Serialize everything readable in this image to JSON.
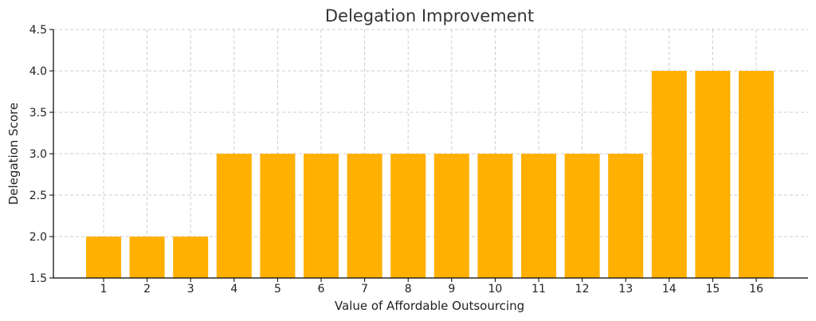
{
  "chart_data": {
    "type": "bar",
    "title": "Delegation Improvement",
    "xlabel": "Value of Affordable Outsourcing",
    "ylabel": "Delegation Score",
    "categories": [
      "1",
      "2",
      "3",
      "4",
      "5",
      "6",
      "7",
      "8",
      "9",
      "10",
      "11",
      "12",
      "13",
      "14",
      "15",
      "16"
    ],
    "values": [
      2,
      2,
      2,
      3,
      3,
      3,
      3,
      3,
      3,
      3,
      3,
      3,
      3,
      4,
      4,
      4
    ],
    "ylim": [
      1.5,
      4.5
    ],
    "yticks": [
      "1.5",
      "2.0",
      "2.5",
      "3.0",
      "3.5",
      "4.0",
      "4.5"
    ],
    "grid": true,
    "bar_color": "#ffb000"
  }
}
